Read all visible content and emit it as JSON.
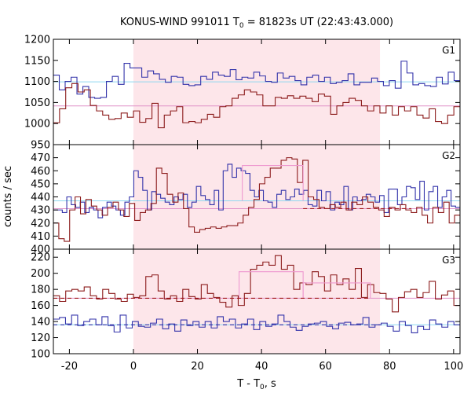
{
  "chart_data": {
    "type": "line",
    "title": "KONUS-WIND 991011 T",
    "title_sub": "0",
    "title_rest": " = 81823s UT (22:43:43.000)",
    "xlabel": "T - T",
    "xlabel_sub": "0",
    "xlabel_rest": ", s",
    "ylabel": "counts / sec",
    "xlim": [
      -25,
      102
    ],
    "x_ticks": [
      -20,
      0,
      20,
      40,
      60,
      80,
      100
    ],
    "shaded_interval": [
      0,
      77
    ],
    "colors": {
      "hist_blue": "#3333aa",
      "hist_red": "#8b1a1a",
      "bg_cyan": "#8fd8f0",
      "bg_pink": "#e090c8",
      "shade": "#fde6ea",
      "fit_pink": "#ee99d0",
      "fit_dash": "#a01818"
    },
    "panels": [
      {
        "label": "G1",
        "ylim": [
          950,
          1200
        ],
        "y_ticks": [
          950,
          1000,
          1050,
          1100,
          1150,
          1200
        ],
        "blue_bg_level": 1099,
        "red_bg_level": 1042,
        "blue_step": [
          1115,
          1080,
          1100,
          1110,
          1070,
          1088,
          1062,
          1060,
          1062,
          1100,
          1112,
          1093,
          1143,
          1132,
          1132,
          1110,
          1125,
          1118,
          1105,
          1098,
          1112,
          1110,
          1093,
          1090,
          1092,
          1112,
          1105,
          1122,
          1115,
          1112,
          1128,
          1104,
          1110,
          1108,
          1122,
          1113,
          1100,
          1098,
          1120,
          1108,
          1112,
          1102,
          1092,
          1110,
          1115,
          1100,
          1110,
          1095,
          1098,
          1102,
          1118,
          1092,
          1098,
          1098,
          1108,
          1100,
          1090,
          1102,
          1084,
          1148,
          1120,
          1092,
          1095,
          1090,
          1088,
          1110,
          1094,
          1122,
          1102
        ],
        "red_step": [
          1002,
          1035,
          1085,
          1095,
          1075,
          1080,
          1043,
          1030,
          1020,
          1010,
          1012,
          1025,
          1015,
          1030,
          1003,
          1012,
          1048,
          990,
          1020,
          1030,
          1040,
          1002,
          1005,
          1002,
          1010,
          1022,
          1015,
          1040,
          1042,
          1060,
          1068,
          1080,
          1075,
          1068,
          1042,
          1042,
          1062,
          1060,
          1066,
          1060,
          1065,
          1060,
          1052,
          1070,
          1065,
          1022,
          1042,
          1050,
          1060,
          1055,
          1042,
          1030,
          1042,
          1025,
          1042,
          1020,
          1040,
          1030,
          1040,
          1020,
          1013,
          1035,
          1005,
          1000,
          1020,
          1040
        ]
      },
      {
        "label": "G2",
        "ylim": [
          400,
          480
        ],
        "y_ticks": [
          400,
          410,
          420,
          430,
          440,
          450,
          460,
          470
        ],
        "blue_bg_level": 437,
        "red_bg_level": 431,
        "blue_fit_level": 464,
        "blue_fit_range": [
          34,
          53
        ],
        "blue_step": [
          430,
          430,
          428,
          440,
          434,
          432,
          436,
          428,
          432,
          430,
          424,
          432,
          436,
          433,
          430,
          426,
          436,
          440,
          460,
          455,
          445,
          430,
          444,
          442,
          439,
          436,
          434,
          440,
          438,
          442,
          432,
          436,
          448,
          441,
          438,
          434,
          445,
          430,
          460,
          465,
          455,
          462,
          460,
          458,
          445,
          440,
          445,
          437,
          436,
          432,
          442,
          445,
          438,
          440,
          446,
          442,
          445,
          434,
          433,
          445,
          437,
          444,
          430,
          436,
          434,
          448,
          430,
          440,
          437,
          438,
          442,
          440,
          436,
          441,
          428,
          446,
          446,
          434,
          440,
          448,
          447,
          438,
          452,
          430,
          444,
          448,
          432,
          440,
          445,
          433,
          432
        ],
        "red_step": [
          420,
          408,
          406,
          430,
          440,
          427,
          438,
          433,
          430,
          426,
          432,
          436,
          430,
          425,
          435,
          422,
          428,
          430,
          435,
          462,
          458,
          442,
          436,
          443,
          431,
          417,
          413,
          415,
          416,
          417,
          416,
          417,
          418,
          418,
          420,
          426,
          432,
          438,
          450,
          455,
          462,
          462,
          468,
          470,
          469,
          451,
          468,
          440,
          438,
          432,
          431,
          434,
          432,
          436,
          430,
          436,
          434,
          440,
          436,
          432,
          430,
          425,
          432,
          430,
          434,
          430,
          428,
          432,
          426,
          420,
          432,
          428,
          436,
          420,
          426
        ]
      },
      {
        "label": "G3",
        "ylim": [
          100,
          230
        ],
        "y_ticks": [
          100,
          120,
          140,
          160,
          180,
          200,
          220
        ],
        "blue_bg_level": 136,
        "red_bg_level": 169,
        "red_fit_level": 202,
        "red_fit_range": [
          33,
          53
        ],
        "red_fit_level2": 188,
        "red_fit_range2": [
          53,
          74
        ],
        "blue_step": [
          143,
          145,
          137,
          148,
          135,
          140,
          143,
          136,
          146,
          135,
          127,
          148,
          132,
          140,
          134,
          133,
          138,
          143,
          131,
          137,
          128,
          142,
          135,
          140,
          133,
          140,
          132,
          146,
          140,
          143,
          132,
          137,
          143,
          130,
          140,
          134,
          137,
          148,
          140,
          133,
          129,
          134,
          137,
          138,
          140,
          134,
          131,
          138,
          139,
          136,
          137,
          145,
          133,
          136,
          138,
          134,
          128,
          140,
          135,
          126,
          134,
          130,
          142,
          137,
          133,
          140,
          136
        ],
        "red_step": [
          172,
          165,
          178,
          180,
          178,
          183,
          172,
          168,
          180,
          175,
          168,
          165,
          174,
          170,
          172,
          196,
          198,
          178,
          168,
          172,
          165,
          180,
          171,
          168,
          186,
          175,
          170,
          164,
          158,
          172,
          160,
          175,
          205,
          210,
          214,
          210,
          222,
          205,
          210,
          180,
          188,
          186,
          202,
          196,
          178,
          198,
          186,
          193,
          180,
          206,
          170,
          186,
          176,
          175,
          168,
          152,
          170,
          177,
          180,
          170,
          176,
          190,
          168,
          173,
          178,
          160
        ]
      }
    ]
  }
}
